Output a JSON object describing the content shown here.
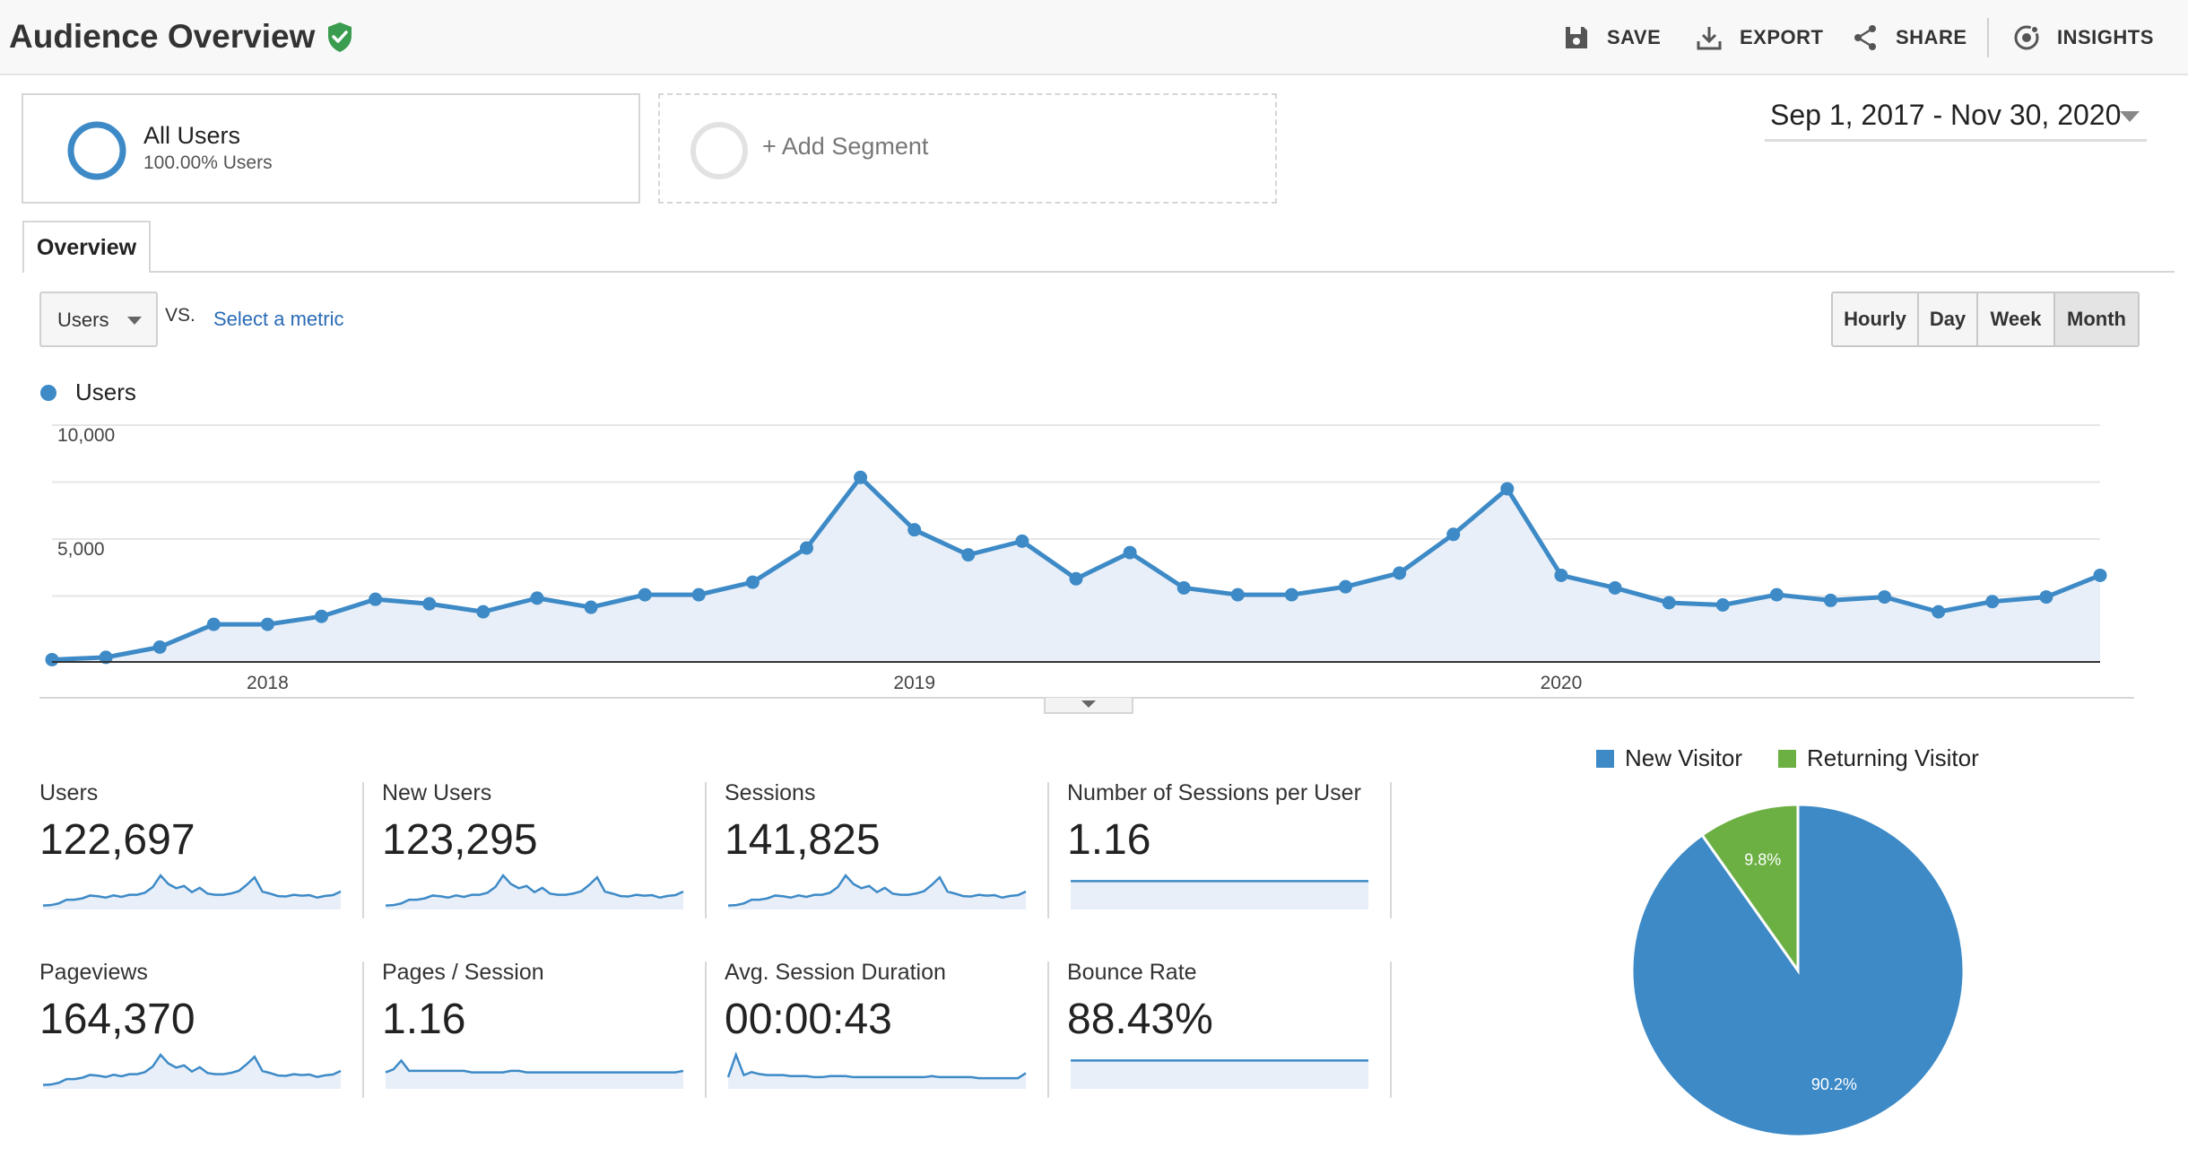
{
  "header": {
    "title": "Audience Overview",
    "actions": {
      "save": "SAVE",
      "export": "EXPORT",
      "share": "SHARE",
      "insights": "INSIGHTS"
    }
  },
  "segments": {
    "primary": {
      "name": "All Users",
      "detail": "100.00% Users"
    },
    "add": "+ Add Segment"
  },
  "date_range": "Sep 1, 2017 - Nov 30, 2020",
  "tabs": {
    "overview": "Overview"
  },
  "controls": {
    "metric_select": "Users",
    "vs": "VS.",
    "compare_link": "Select a metric",
    "granularity": [
      "Hourly",
      "Day",
      "Week",
      "Month"
    ],
    "granularity_selected": "Month"
  },
  "colors": {
    "accent": "#3d8ac7",
    "secondary": "#6cb044",
    "fill": "#e8eff8",
    "link": "#2a6bb5",
    "verified": "#3a9c4f"
  },
  "chart_data": [
    {
      "type": "line",
      "series": [
        {
          "name": "Users",
          "values": [
            100,
            200,
            650,
            1650,
            1650,
            2000,
            2750,
            2550,
            2200,
            2800,
            2400,
            2950,
            2950,
            3500,
            5000,
            8100,
            5800,
            4700,
            5300,
            3650,
            4800,
            3250,
            2950,
            2950,
            3300,
            3900,
            5600,
            7600,
            3800,
            3250,
            2600,
            2500,
            2950,
            2700,
            2850,
            2200,
            2650,
            2850,
            3800
          ]
        }
      ],
      "x_tick_labels": [
        "2018",
        "2019",
        "2020"
      ],
      "y_tick_labels": [
        "10,000",
        "5,000"
      ],
      "ylim": [
        0,
        10000
      ],
      "legend_position": "top-left"
    },
    {
      "type": "pie",
      "slices": [
        {
          "label": "New Visitor",
          "value": 90.2,
          "text": "90.2%"
        },
        {
          "label": "Returning Visitor",
          "value": 9.8,
          "text": "9.8%"
        }
      ],
      "legend_position": "top"
    }
  ],
  "metrics": [
    {
      "label": "Users",
      "value": "122,697",
      "spark": [
        100,
        200,
        650,
        1650,
        1650,
        2000,
        2750,
        2550,
        2200,
        2800,
        2400,
        2950,
        2950,
        3500,
        5000,
        8100,
        5800,
        4700,
        5300,
        3650,
        4800,
        3250,
        2950,
        2950,
        3300,
        3900,
        5600,
        7600,
        3800,
        3250,
        2600,
        2500,
        2950,
        2700,
        2850,
        2200,
        2650,
        2850,
        3800
      ]
    },
    {
      "label": "New Users",
      "value": "123,295",
      "spark": [
        100,
        200,
        650,
        1650,
        1650,
        2000,
        2750,
        2550,
        2200,
        2800,
        2400,
        2950,
        2950,
        3500,
        5000,
        8100,
        5800,
        4700,
        5300,
        3650,
        4800,
        3250,
        2950,
        2950,
        3300,
        3900,
        5600,
        7600,
        3800,
        3250,
        2600,
        2500,
        2950,
        2700,
        2850,
        2200,
        2650,
        2850,
        3800
      ]
    },
    {
      "label": "Sessions",
      "value": "141,825",
      "spark": [
        100,
        200,
        650,
        1650,
        1650,
        2000,
        2750,
        2550,
        2200,
        2800,
        2400,
        2950,
        2950,
        3500,
        5000,
        8100,
        5800,
        4700,
        5300,
        3650,
        4800,
        3250,
        2950,
        2950,
        3300,
        3900,
        5600,
        7600,
        3800,
        3250,
        2600,
        2500,
        2950,
        2700,
        2850,
        2200,
        2650,
        2850,
        3800
      ]
    },
    {
      "label": "Number of Sessions per User",
      "value": "1.16",
      "spark": [
        10,
        10,
        10,
        10,
        10,
        10,
        10,
        10,
        10,
        10,
        10,
        10,
        10,
        10,
        10,
        10,
        10,
        10,
        10,
        10,
        10,
        10,
        10,
        10,
        10,
        10,
        10,
        10,
        10,
        10,
        10,
        10,
        10,
        10,
        10,
        10,
        10,
        10,
        10
      ]
    },
    {
      "label": "Pageviews",
      "value": "164,370",
      "spark": [
        100,
        200,
        650,
        1650,
        1650,
        2000,
        2750,
        2550,
        2200,
        2800,
        2400,
        2950,
        2950,
        3500,
        5000,
        8100,
        5800,
        4700,
        5300,
        3650,
        4800,
        3250,
        2950,
        2950,
        3300,
        3900,
        5600,
        7600,
        3800,
        3250,
        2600,
        2500,
        2950,
        2700,
        2850,
        2200,
        2650,
        2850,
        3800
      ]
    },
    {
      "label": "Pages / Session",
      "value": "1.16",
      "spark": [
        10,
        12,
        18,
        11,
        11,
        11,
        11,
        11,
        11,
        11,
        11,
        10,
        10,
        10,
        10,
        10,
        11,
        11,
        10,
        10,
        10,
        10,
        10,
        10,
        10,
        10,
        10,
        10,
        10,
        10,
        10,
        10,
        10,
        10,
        10,
        10,
        10,
        10,
        11
      ]
    },
    {
      "label": "Avg. Session Duration",
      "value": "00:00:43",
      "spark": [
        8,
        30,
        10,
        13,
        11,
        10,
        10,
        10,
        9,
        9,
        9,
        8,
        8,
        9,
        9,
        9,
        8,
        8,
        8,
        8,
        8,
        8,
        8,
        8,
        8,
        8,
        9,
        8,
        8,
        8,
        8,
        8,
        7,
        7,
        7,
        7,
        7,
        7,
        12
      ]
    },
    {
      "label": "Bounce Rate",
      "value": "88.43%",
      "spark": [
        10,
        10,
        10,
        10,
        10,
        10,
        10,
        10,
        10,
        10,
        10,
        10,
        10,
        10,
        10,
        10,
        10,
        10,
        10,
        10,
        10,
        10,
        10,
        10,
        10,
        10,
        10,
        10,
        10,
        10,
        10,
        10,
        10,
        10,
        10,
        10,
        10,
        10,
        10
      ]
    }
  ]
}
